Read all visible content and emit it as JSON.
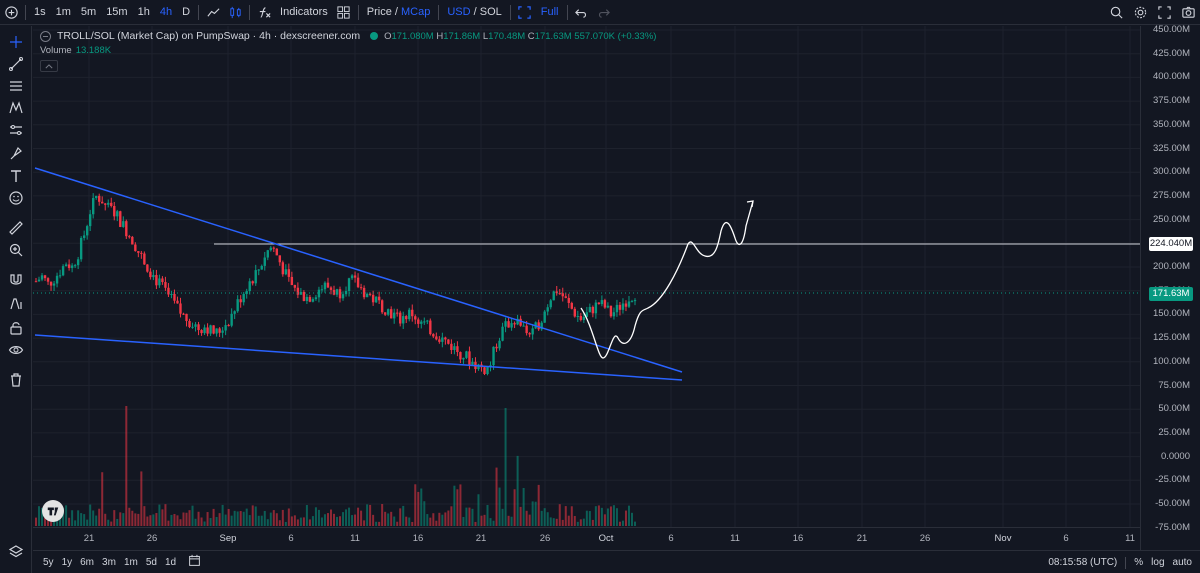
{
  "toolbar": {
    "intervals": [
      "1s",
      "1m",
      "5m",
      "15m",
      "1h",
      "4h",
      "D"
    ],
    "active_interval": "4h",
    "indicators_label": "Indicators",
    "price_label": "Price",
    "slash1": "/",
    "mcap_label": "MCap",
    "usd_label": "USD",
    "slash2": "/",
    "sol_label": "SOL",
    "full_label": "Full"
  },
  "legend": {
    "symbol": "TROLL/SOL (Market Cap) on PumpSwap · 4h · dexscreener.com",
    "o_key": "O",
    "o_val": "171.080M",
    "h_key": "H",
    "h_val": "171.86M",
    "l_key": "L",
    "l_val": "170.48M",
    "c_key": "C",
    "c_val": "171.63M",
    "change": "557.070K (+0.33%)",
    "volume_label": "Volume",
    "volume_value": "13.188K"
  },
  "price_axis": {
    "labels": [
      "450.00M",
      "425.00M",
      "400.00M",
      "375.00M",
      "350.00M",
      "325.00M",
      "300.00M",
      "275.00M",
      "250.00M",
      "225.00M",
      "200.00M",
      "175.00M",
      "150.00M",
      "125.00M",
      "100.00M",
      "75.00M",
      "50.00M",
      "25.00M",
      "0.0000",
      "-25.00M",
      "-50.00M",
      "-75.00M"
    ],
    "badge_level": "224.040M",
    "badge_current": "171.63M"
  },
  "time_axis": {
    "labels": [
      "21",
      "26",
      "Sep",
      "6",
      "11",
      "16",
      "21",
      "26",
      "Oct",
      "6",
      "11",
      "16",
      "21",
      "26",
      "Nov",
      "6",
      "11"
    ]
  },
  "bottombar": {
    "ranges": [
      "5y",
      "1y",
      "6m",
      "3m",
      "1m",
      "5d",
      "1d"
    ],
    "time": "08:15:58 (UTC)",
    "percent": "%",
    "log": "log",
    "auto": "auto"
  },
  "colors": {
    "up": "#089981",
    "down": "#f23645",
    "trendline": "#2962ff",
    "background": "#131722"
  },
  "chart_data": {
    "type": "candlestick",
    "price_series": [
      185,
      190,
      182,
      188,
      196,
      205,
      200,
      215,
      235,
      260,
      275,
      270,
      262,
      258,
      248,
      238,
      228,
      215,
      205,
      195,
      185,
      178,
      168,
      160,
      150,
      145,
      140,
      135,
      138,
      132,
      130,
      138,
      145,
      158,
      170,
      182,
      190,
      200,
      215,
      222,
      210,
      195,
      182,
      175,
      170,
      168,
      172,
      178,
      180,
      176,
      172,
      180,
      186,
      182,
      175,
      170,
      165,
      160,
      155,
      150,
      145,
      148,
      152,
      145,
      140,
      135,
      130,
      125,
      120,
      115,
      110,
      106,
      100,
      96,
      92,
      95,
      118,
      132,
      140,
      145,
      140,
      132,
      128,
      140,
      152,
      168,
      176,
      170,
      160,
      152,
      145,
      150,
      156,
      162,
      158,
      150,
      155,
      162,
      168,
      172
    ]
  }
}
